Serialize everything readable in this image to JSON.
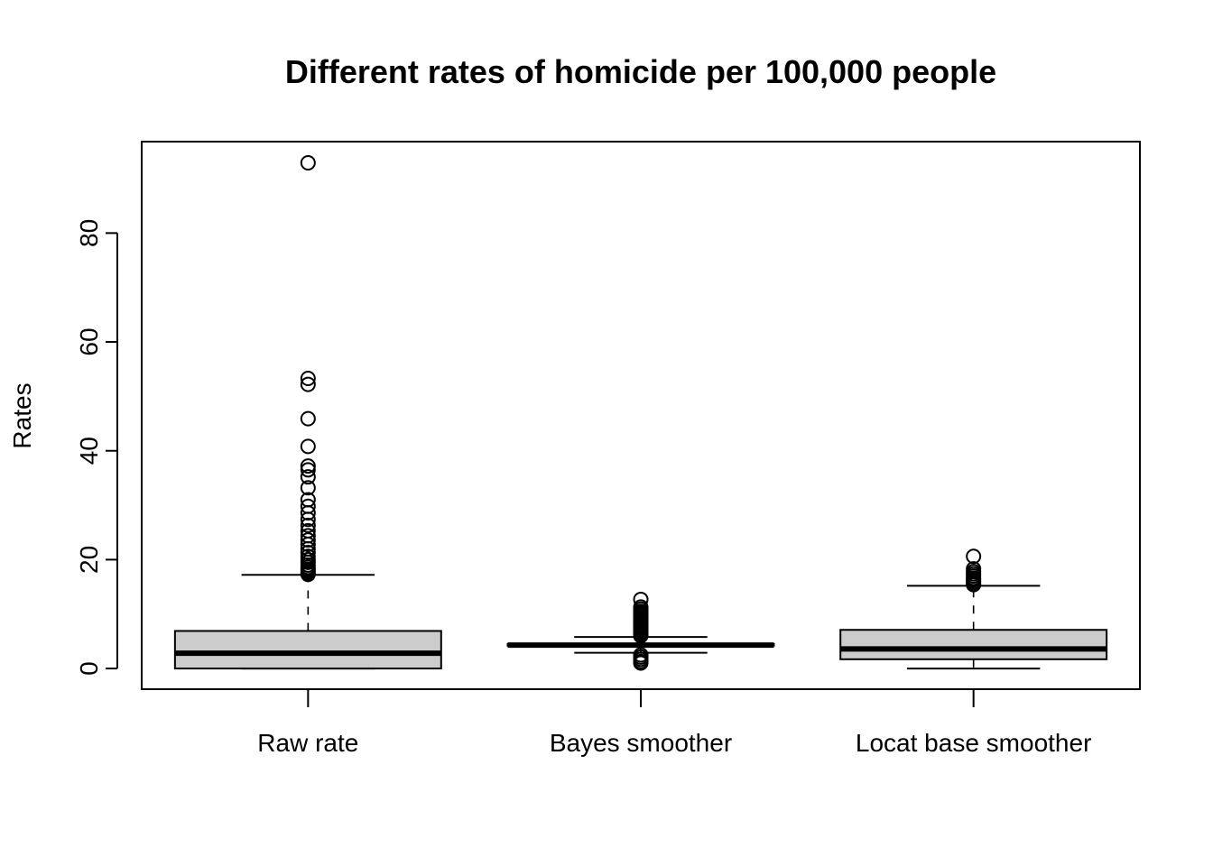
{
  "chart_data": {
    "type": "boxplot",
    "title": "Different rates of homicide per 100,000 people",
    "xlabel": "",
    "ylabel": "Rates",
    "ylim": [
      -3.8,
      96.8
    ],
    "yticks": [
      0,
      20,
      40,
      60,
      80
    ],
    "grid": false,
    "categories": [
      "Raw rate",
      "Bayes smoother",
      "Locat base smoother"
    ],
    "boxes": [
      {
        "category": "Raw rate",
        "whisker_low": 0,
        "q1": 0,
        "median": 2.8,
        "q3": 6.9,
        "whisker_high": 17.2,
        "outliers": [
          17.3,
          17.6,
          17.9,
          18.2,
          18.6,
          19.0,
          19.5,
          20.0,
          20.6,
          21.3,
          22.0,
          22.8,
          23.6,
          24.4,
          25.3,
          26.3,
          27.4,
          28.6,
          29.8,
          31.0,
          33.2,
          35.2,
          36.5,
          37.2,
          40.8,
          45.9,
          52.2,
          53.3,
          92.9
        ]
      },
      {
        "category": "Bayes smoother",
        "whisker_low": 2.9,
        "q1": 4.2,
        "median": 4.3,
        "q3": 4.5,
        "whisker_high": 5.8,
        "outliers": [
          1.0,
          1.3,
          1.7,
          2.1,
          2.5,
          6.0,
          6.3,
          6.6,
          6.9,
          7.2,
          7.5,
          7.8,
          8.1,
          8.4,
          8.7,
          9.0,
          9.3,
          9.6,
          9.9,
          10.2,
          10.5,
          10.9,
          11.3,
          12.7
        ]
      },
      {
        "category": "Locat base smoother",
        "whisker_low": 0,
        "q1": 1.7,
        "median": 3.6,
        "q3": 7.1,
        "whisker_high": 15.2,
        "outliers": [
          15.4,
          15.7,
          16.0,
          16.3,
          16.6,
          17.0,
          17.4,
          17.8,
          18.3,
          20.6
        ]
      }
    ],
    "colors": {
      "box_fill": "#cccccc",
      "stroke": "#000000"
    }
  }
}
